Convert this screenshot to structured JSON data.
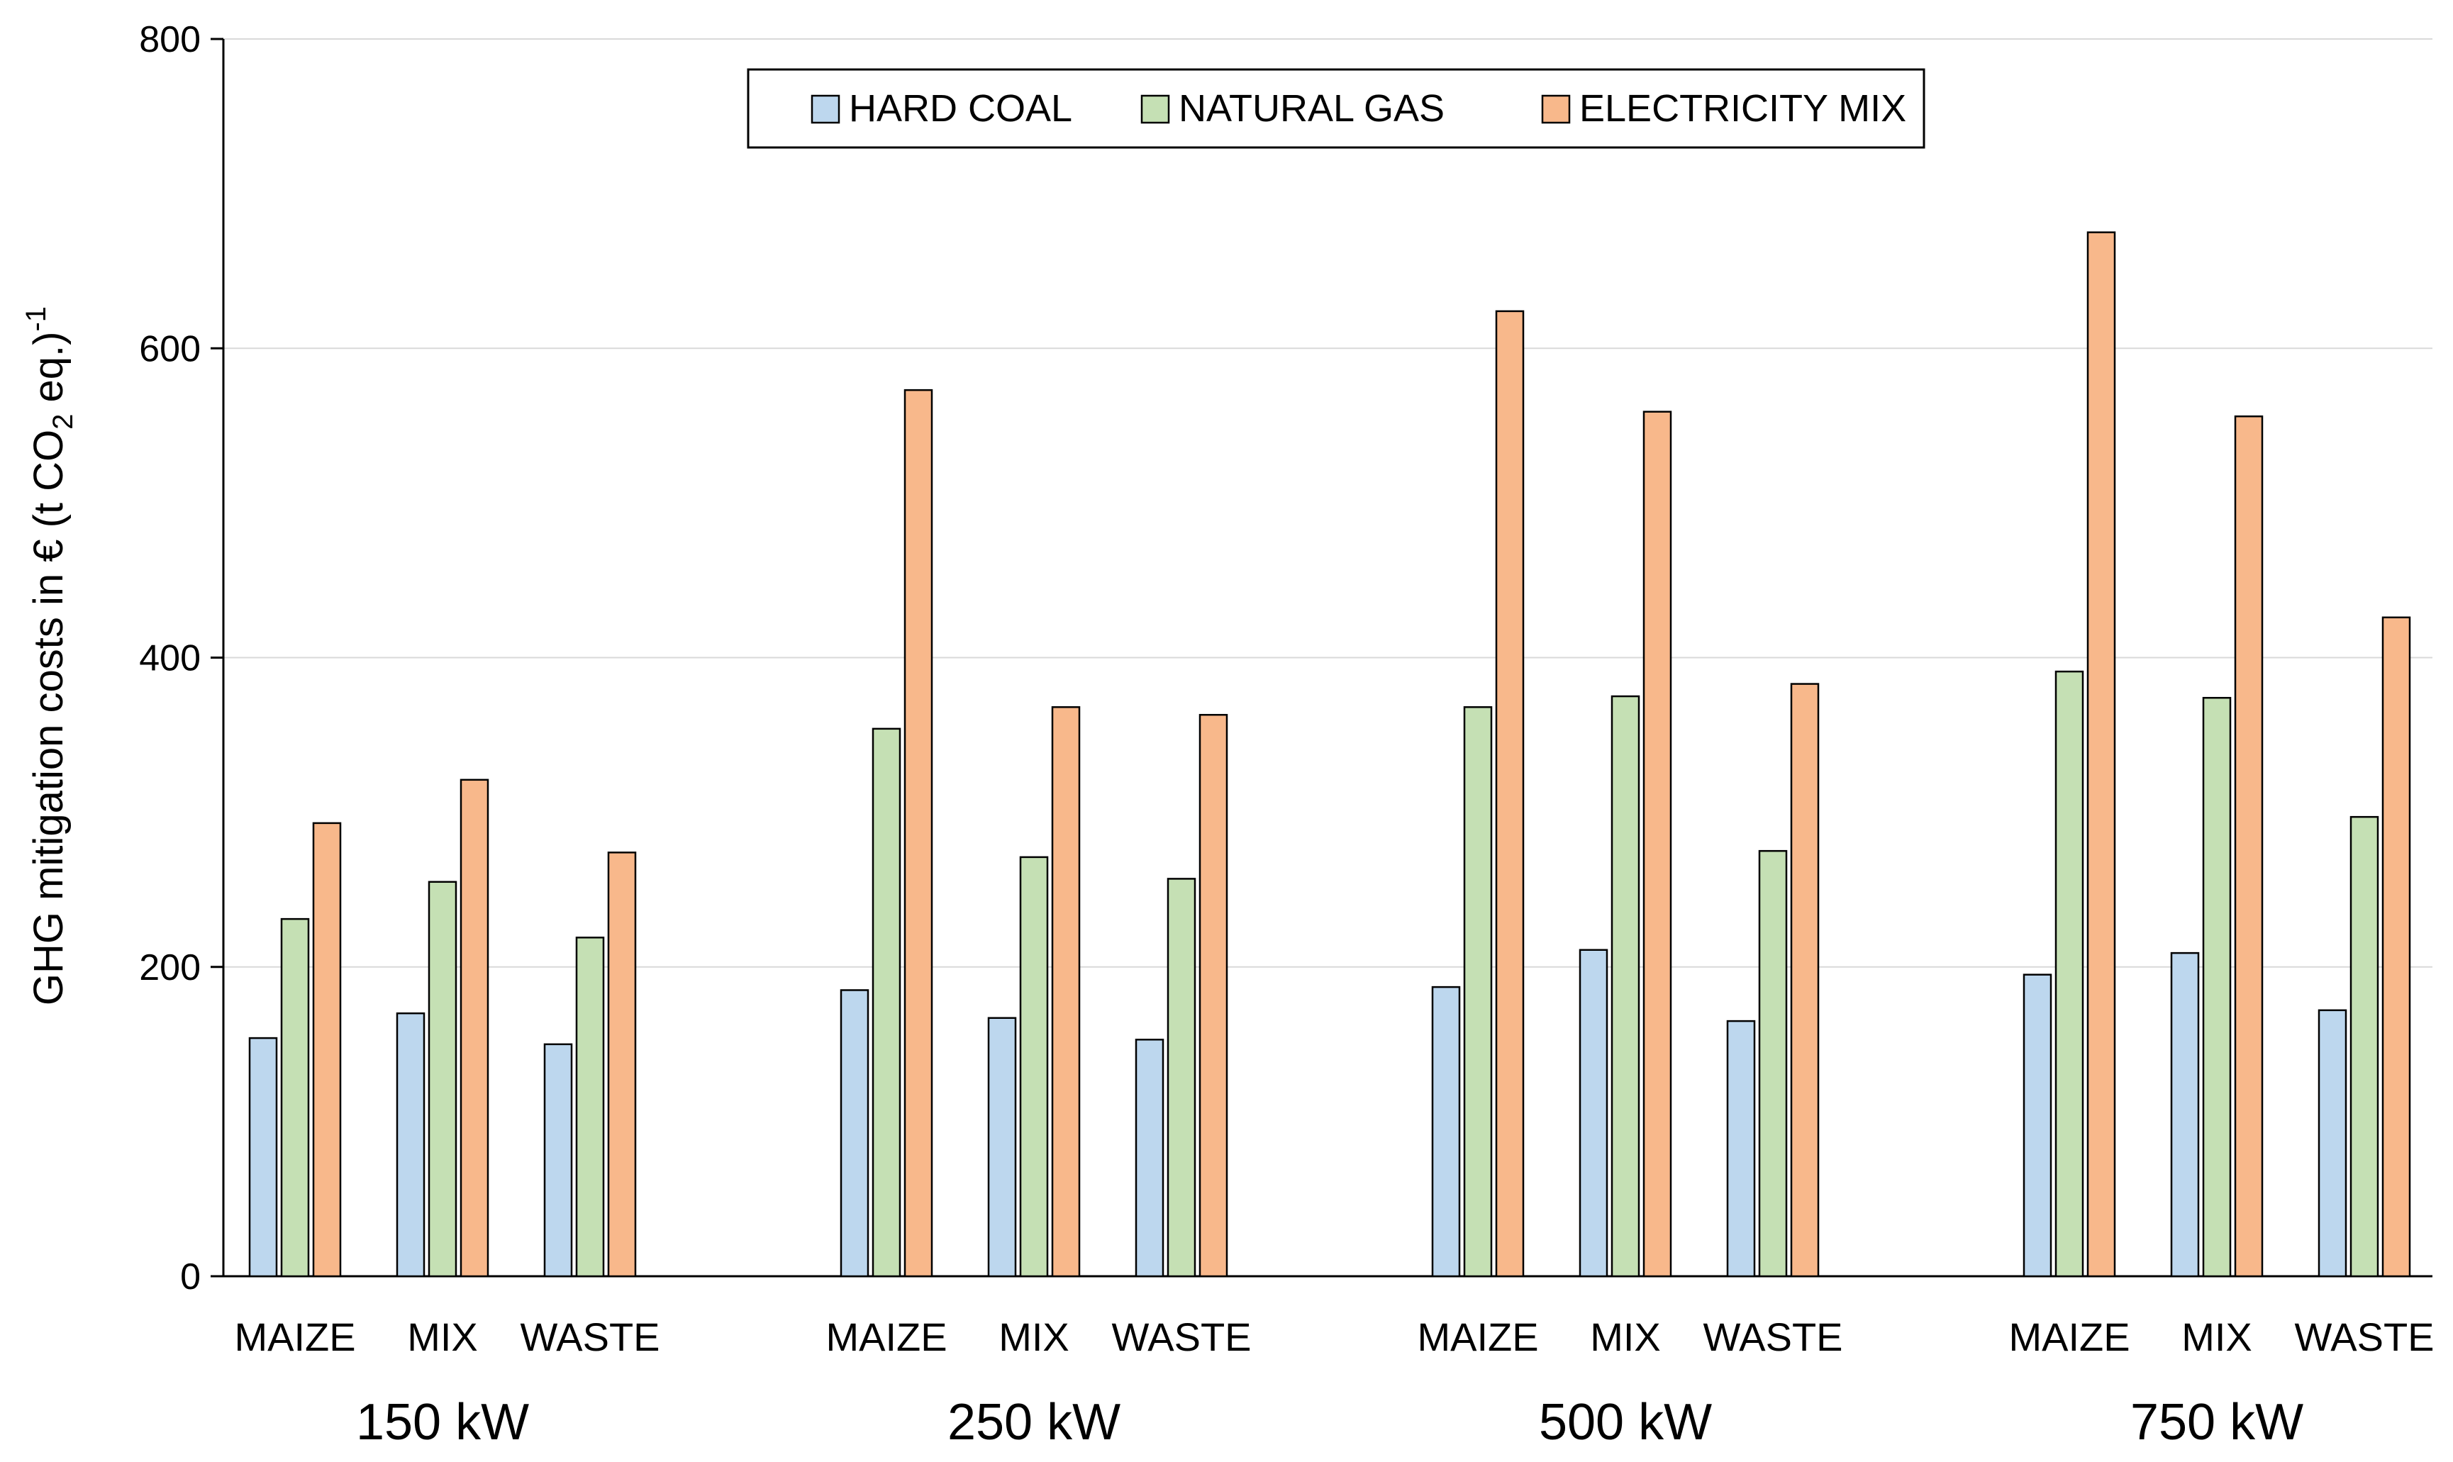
{
  "chart_data": {
    "type": "bar",
    "title": "",
    "xlabel": "",
    "ylabel": {
      "prefix": "GHG mitigation costs in € (t CO",
      "subscript": "2",
      "middle": " eq.)",
      "superscript": "-1"
    },
    "ylim": [
      0,
      800
    ],
    "yticks": [
      0,
      200,
      400,
      600,
      800
    ],
    "grid": true,
    "legend_position": "top-center",
    "groups": [
      {
        "label": "150 kW",
        "categories": [
          "MAIZE",
          "MIX",
          "WASTE"
        ]
      },
      {
        "label": "250 kW",
        "categories": [
          "MAIZE",
          "MIX",
          "WASTE"
        ]
      },
      {
        "label": "500 kW",
        "categories": [
          "MAIZE",
          "MIX",
          "WASTE"
        ]
      },
      {
        "label": "750 kW",
        "categories": [
          "MAIZE",
          "MIX",
          "WASTE"
        ]
      }
    ],
    "series": [
      {
        "name": "HARD COAL",
        "color": "#bdd7ee",
        "values": [
          154,
          170,
          150,
          185,
          167,
          153,
          187,
          211,
          165,
          195,
          209,
          172
        ]
      },
      {
        "name": "NATURAL GAS",
        "color": "#c5e0b4",
        "values": [
          231,
          255,
          219,
          354,
          271,
          257,
          368,
          375,
          275,
          391,
          374,
          297
        ]
      },
      {
        "name": "ELECTRICITY MIX",
        "color": "#f8b88b",
        "values": [
          293,
          321,
          274,
          573,
          368,
          363,
          624,
          559,
          383,
          675,
          556,
          426
        ]
      }
    ]
  }
}
